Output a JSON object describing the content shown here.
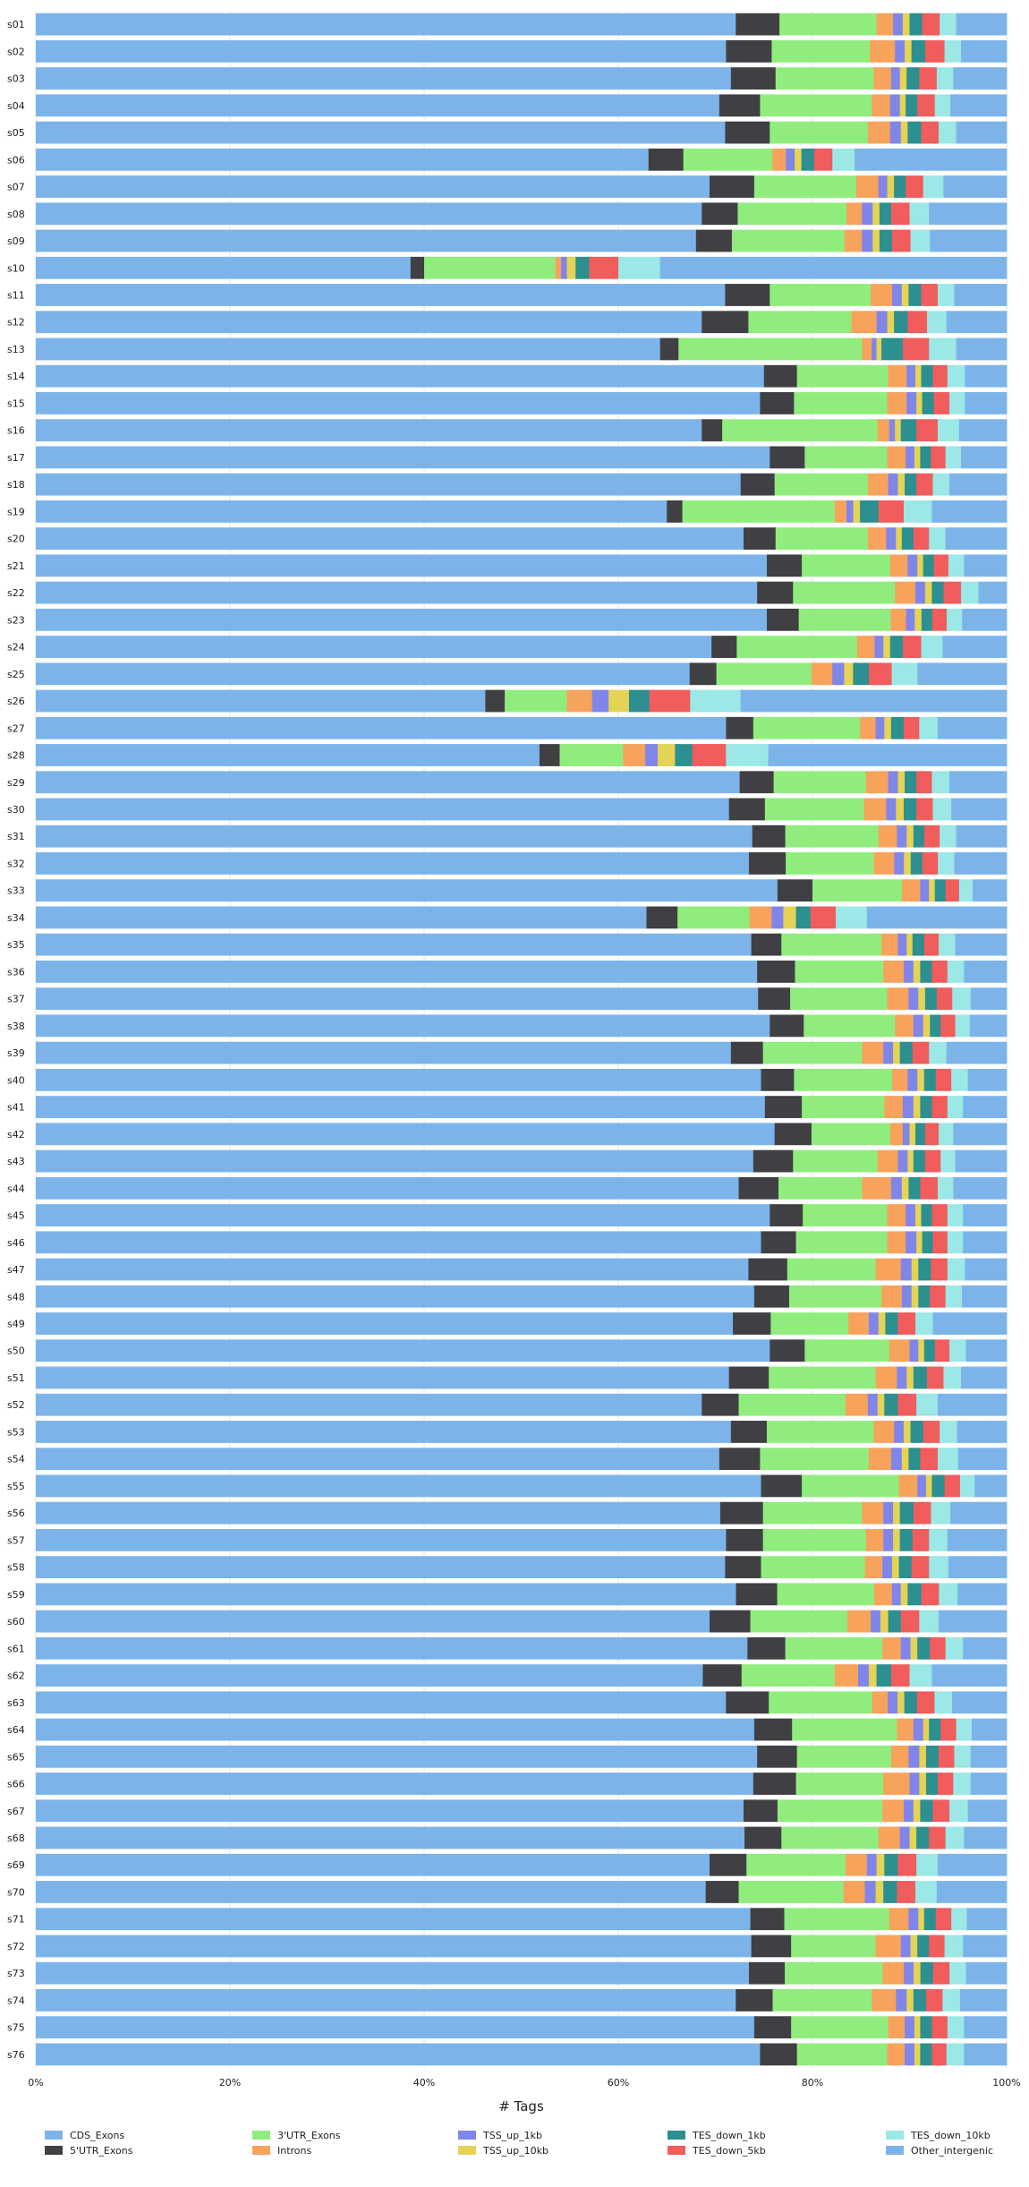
{
  "chart_data": {
    "type": "bar",
    "orientation": "horizontal",
    "stacked": true,
    "xlabel": "# Tags",
    "xlim": [
      0,
      100
    ],
    "x_ticks": [
      "0%",
      "20%",
      "40%",
      "60%",
      "80%",
      "100%"
    ],
    "grid": true,
    "legend_position": "bottom",
    "categories": [
      "s01",
      "s02",
      "s03",
      "s04",
      "s05",
      "s06",
      "s07",
      "s08",
      "s09",
      "s10",
      "s11",
      "s12",
      "s13",
      "s14",
      "s15",
      "s16",
      "s17",
      "s18",
      "s19",
      "s20",
      "s21",
      "s22",
      "s23",
      "s24",
      "s25",
      "s26",
      "s27",
      "s28",
      "s29",
      "s30",
      "s31",
      "s32",
      "s33",
      "s34",
      "s35",
      "s36",
      "s37",
      "s38",
      "s39",
      "s40",
      "s41",
      "s42",
      "s43",
      "s44",
      "s45",
      "s46",
      "s47",
      "s48",
      "s49",
      "s50",
      "s51",
      "s52",
      "s53",
      "s54",
      "s55",
      "s56",
      "s57",
      "s58",
      "s59",
      "s60",
      "s61",
      "s62",
      "s63",
      "s64",
      "s65",
      "s66",
      "s67",
      "s68",
      "s69",
      "s70",
      "s71",
      "s72",
      "s73",
      "s74",
      "s75",
      "s76"
    ],
    "series": [
      {
        "name": "CDS_Exons",
        "color": "#7cb4ea",
        "values": [
          72.1,
          71.1,
          71.6,
          70.4,
          71.0,
          63.3,
          69.4,
          68.6,
          68.0,
          38.6,
          71.0,
          68.6,
          64.3,
          75.0,
          74.6,
          68.6,
          75.6,
          72.6,
          65.0,
          72.9,
          75.3,
          74.3,
          75.6,
          69.6,
          66.0,
          46.3,
          71.1,
          52.4,
          72.5,
          71.4,
          73.8,
          73.6,
          76.4,
          62.9,
          73.7,
          74.3,
          74.4,
          75.6,
          71.6,
          74.7,
          75.1,
          76.1,
          73.9,
          72.4,
          75.6,
          74.7,
          73.4,
          74.0,
          71.8,
          75.6,
          71.4,
          68.6,
          71.6,
          70.4,
          74.7,
          70.5,
          71.1,
          71.0,
          71.4,
          69.4,
          73.3,
          68.7,
          70.8,
          74.0,
          74.3,
          73.9,
          72.9,
          73.0,
          69.4,
          69.0,
          73.6,
          73.7,
          73.6,
          72.1,
          74.0,
          74.6
        ]
      },
      {
        "name": "5'UTR_Exons",
        "color": "#404044",
        "values": [
          4.5,
          4.7,
          4.6,
          4.2,
          4.6,
          3.6,
          4.6,
          3.7,
          3.7,
          1.4,
          4.6,
          4.8,
          1.9,
          3.4,
          3.5,
          2.1,
          3.6,
          3.5,
          1.6,
          3.3,
          3.6,
          3.7,
          3.3,
          2.6,
          2.7,
          2.0,
          2.8,
          2.1,
          3.5,
          3.7,
          3.4,
          3.8,
          3.6,
          3.2,
          3.1,
          3.9,
          3.3,
          3.5,
          3.3,
          3.4,
          3.8,
          3.8,
          4.1,
          4.1,
          3.4,
          3.6,
          4.0,
          3.6,
          3.9,
          3.6,
          4.1,
          3.8,
          3.7,
          4.2,
          4.2,
          4.4,
          3.8,
          3.7,
          4.2,
          4.2,
          3.9,
          4.0,
          4.4,
          3.9,
          4.1,
          4.4,
          3.5,
          3.8,
          3.8,
          3.4,
          3.5,
          4.1,
          3.7,
          3.8,
          3.8,
          3.8
        ]
      },
      {
        "name": "3'UTR_Exons",
        "color": "#90ed7d",
        "values": [
          10.0,
          10.1,
          10.1,
          11.5,
          10.1,
          9.2,
          10.5,
          11.2,
          11.6,
          13.5,
          10.4,
          10.6,
          18.9,
          9.4,
          9.6,
          16.0,
          8.5,
          9.6,
          15.7,
          9.5,
          9.1,
          10.5,
          9.5,
          12.4,
          9.6,
          6.4,
          11.0,
          6.6,
          9.5,
          10.2,
          9.6,
          9.1,
          9.2,
          7.4,
          10.3,
          9.1,
          10.0,
          9.4,
          10.2,
          10.1,
          8.5,
          8.1,
          8.7,
          8.6,
          8.7,
          9.4,
          9.1,
          9.5,
          8.0,
          8.7,
          11.0,
          11.0,
          11.0,
          11.2,
          10.0,
          10.2,
          10.6,
          10.7,
          9.9,
          10.0,
          10.0,
          9.6,
          10.6,
          10.8,
          9.7,
          9.0,
          10.8,
          10.0,
          10.2,
          10.8,
          10.8,
          8.7,
          10.1,
          10.2,
          10.0,
          9.3
        ]
      },
      {
        "name": "Introns",
        "color": "#f7a35c",
        "values": [
          1.7,
          2.6,
          1.8,
          1.9,
          2.3,
          1.4,
          2.3,
          1.6,
          1.8,
          0.6,
          2.2,
          2.6,
          1.0,
          1.9,
          2.0,
          1.2,
          1.9,
          2.1,
          1.2,
          1.9,
          1.8,
          2.1,
          1.6,
          1.8,
          2.1,
          2.6,
          1.6,
          2.3,
          2.3,
          2.3,
          1.9,
          2.1,
          1.9,
          2.3,
          1.7,
          2.1,
          2.2,
          1.9,
          2.2,
          1.6,
          1.9,
          1.3,
          2.1,
          3.0,
          1.9,
          1.9,
          2.6,
          2.1,
          2.1,
          2.1,
          2.2,
          2.3,
          2.1,
          2.3,
          1.9,
          2.2,
          1.8,
          1.8,
          1.8,
          2.4,
          1.9,
          2.4,
          1.6,
          1.7,
          1.8,
          2.7,
          2.2,
          2.2,
          2.2,
          2.2,
          2.0,
          2.6,
          2.2,
          2.5,
          1.7,
          1.8
        ]
      },
      {
        "name": "TSS_up_1kb",
        "color": "#8085e9",
        "values": [
          1.0,
          1.0,
          0.9,
          1.0,
          1.1,
          0.9,
          0.9,
          1.1,
          1.1,
          0.6,
          1.0,
          1.1,
          0.5,
          0.9,
          1.0,
          0.6,
          0.9,
          1.0,
          0.7,
          1.0,
          1.0,
          1.0,
          0.9,
          0.9,
          1.2,
          1.7,
          0.9,
          1.3,
          1.0,
          1.0,
          1.0,
          1.0,
          0.9,
          1.2,
          0.9,
          1.0,
          1.0,
          1.0,
          1.0,
          1.0,
          1.1,
          0.7,
          1.0,
          1.1,
          1.0,
          1.1,
          1.1,
          1.0,
          1.0,
          0.9,
          1.0,
          1.0,
          1.0,
          1.1,
          0.9,
          1.0,
          1.0,
          1.0,
          0.9,
          1.0,
          1.0,
          1.1,
          1.0,
          1.0,
          1.1,
          1.0,
          1.0,
          1.0,
          1.0,
          1.1,
          1.0,
          1.0,
          1.0,
          1.1,
          1.0,
          1.0
        ]
      },
      {
        "name": "TSS_up_10kb",
        "color": "#e4d354",
        "values": [
          0.7,
          0.7,
          0.7,
          0.6,
          0.7,
          0.7,
          0.7,
          0.7,
          0.7,
          0.9,
          0.7,
          0.7,
          0.5,
          0.6,
          0.6,
          0.6,
          0.6,
          0.7,
          0.7,
          0.6,
          0.6,
          0.7,
          0.7,
          0.7,
          0.9,
          2.1,
          0.7,
          1.8,
          0.7,
          0.8,
          0.7,
          0.7,
          0.6,
          1.3,
          0.6,
          0.7,
          0.7,
          0.7,
          0.7,
          0.7,
          0.7,
          0.6,
          0.6,
          0.7,
          0.6,
          0.6,
          0.7,
          0.7,
          0.7,
          0.6,
          0.7,
          0.7,
          0.7,
          0.7,
          0.6,
          0.7,
          0.7,
          0.7,
          0.7,
          0.8,
          0.7,
          0.8,
          0.7,
          0.6,
          0.7,
          0.7,
          0.7,
          0.7,
          0.8,
          0.8,
          0.6,
          0.7,
          0.7,
          0.7,
          0.6,
          0.6
        ]
      },
      {
        "name": "TES_down_1kb",
        "color": "#2b908f",
        "values": [
          1.3,
          1.4,
          1.3,
          1.2,
          1.4,
          1.3,
          1.2,
          1.2,
          1.3,
          1.4,
          1.3,
          1.4,
          2.2,
          1.2,
          1.2,
          1.6,
          1.1,
          1.2,
          1.9,
          1.2,
          1.1,
          1.2,
          1.1,
          1.3,
          1.6,
          2.1,
          1.3,
          1.8,
          1.2,
          1.3,
          1.1,
          1.2,
          1.1,
          1.5,
          1.2,
          1.2,
          1.2,
          1.1,
          1.3,
          1.2,
          1.2,
          1.0,
          1.2,
          1.2,
          1.1,
          1.1,
          1.3,
          1.2,
          1.3,
          1.1,
          1.4,
          1.4,
          1.3,
          1.2,
          1.3,
          1.4,
          1.3,
          1.3,
          1.4,
          1.3,
          1.3,
          1.5,
          1.3,
          1.2,
          1.3,
          1.2,
          1.3,
          1.3,
          1.4,
          1.4,
          1.2,
          1.2,
          1.3,
          1.3,
          1.2,
          1.2
        ]
      },
      {
        "name": "TES_down_5kb",
        "color": "#f15c5c",
        "values": [
          1.8,
          2.0,
          1.8,
          1.8,
          1.8,
          1.9,
          1.8,
          1.9,
          1.9,
          3.0,
          1.7,
          2.0,
          2.7,
          1.5,
          1.6,
          2.2,
          1.5,
          1.7,
          2.6,
          1.6,
          1.5,
          1.8,
          1.5,
          1.9,
          2.3,
          4.2,
          1.6,
          3.5,
          1.6,
          1.7,
          1.6,
          1.6,
          1.4,
          2.6,
          1.5,
          1.6,
          1.6,
          1.5,
          1.7,
          1.6,
          1.6,
          1.4,
          1.6,
          1.8,
          1.6,
          1.5,
          1.7,
          1.6,
          1.8,
          1.5,
          1.7,
          1.9,
          1.7,
          1.8,
          1.6,
          1.8,
          1.7,
          1.8,
          1.8,
          1.9,
          1.6,
          1.9,
          1.8,
          1.6,
          1.6,
          1.6,
          1.7,
          1.7,
          1.9,
          1.9,
          1.6,
          1.6,
          1.7,
          1.7,
          1.6,
          1.5
        ]
      },
      {
        "name": "TES_down_10kb",
        "color": "#9be8e6",
        "values": [
          1.7,
          1.7,
          1.7,
          1.6,
          1.8,
          2.3,
          2.1,
          2.0,
          2.0,
          4.3,
          1.7,
          2.0,
          2.8,
          1.8,
          1.6,
          2.2,
          1.6,
          1.7,
          2.9,
          1.7,
          1.6,
          1.8,
          1.6,
          2.2,
          2.6,
          5.2,
          1.9,
          4.4,
          1.8,
          1.9,
          1.7,
          1.7,
          1.4,
          3.2,
          1.7,
          1.7,
          1.9,
          1.5,
          1.8,
          1.7,
          1.6,
          1.5,
          1.5,
          1.6,
          1.6,
          1.6,
          1.8,
          1.7,
          1.8,
          1.7,
          1.8,
          2.2,
          1.8,
          2.1,
          1.5,
          2.0,
          1.9,
          2.0,
          1.9,
          2.0,
          1.8,
          2.3,
          1.8,
          1.6,
          1.7,
          1.8,
          1.9,
          1.9,
          2.2,
          2.2,
          1.6,
          1.9,
          1.7,
          1.8,
          1.7,
          1.8
        ]
      },
      {
        "name": "Other_intergenic",
        "color": "#7cb4ea",
        "values": [
          5.2,
          4.7,
          5.5,
          5.8,
          5.2,
          15.7,
          6.5,
          8.0,
          7.9,
          35.7,
          5.4,
          6.2,
          5.2,
          4.3,
          4.3,
          4.9,
          4.7,
          5.9,
          7.7,
          6.3,
          4.4,
          2.9,
          4.6,
          6.6,
          9.0,
          27.4,
          7.1,
          24.8,
          5.9,
          5.7,
          5.2,
          5.4,
          3.5,
          14.4,
          5.3,
          4.4,
          3.7,
          3.8,
          6.2,
          4.0,
          4.5,
          5.5,
          5.3,
          5.5,
          4.5,
          4.5,
          4.3,
          4.6,
          7.6,
          4.2,
          4.7,
          7.1,
          5.1,
          5.0,
          3.3,
          5.8,
          6.1,
          6.0,
          5.0,
          7.0,
          4.5,
          7.7,
          5.6,
          3.6,
          3.7,
          3.7,
          4.0,
          4.4,
          7.1,
          7.2,
          4.1,
          4.5,
          4.2,
          4.8,
          4.4,
          4.4
        ]
      }
    ]
  }
}
